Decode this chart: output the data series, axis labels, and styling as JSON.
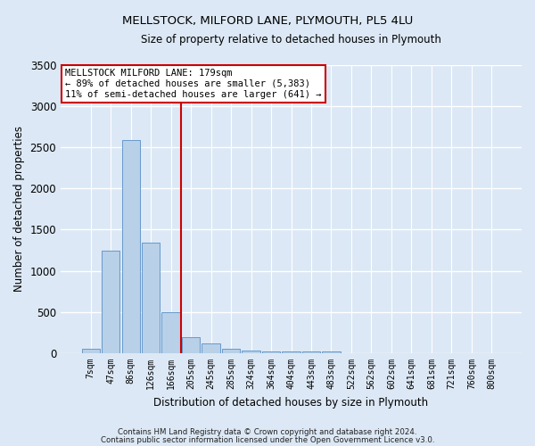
{
  "title": "MELLSTOCK, MILFORD LANE, PLYMOUTH, PL5 4LU",
  "subtitle": "Size of property relative to detached houses in Plymouth",
  "xlabel": "Distribution of detached houses by size in Plymouth",
  "ylabel": "Number of detached properties",
  "bar_color": "#b8d0e8",
  "bar_edge_color": "#6699cc",
  "categories": [
    "7sqm",
    "47sqm",
    "86sqm",
    "126sqm",
    "166sqm",
    "205sqm",
    "245sqm",
    "285sqm",
    "324sqm",
    "364sqm",
    "404sqm",
    "443sqm",
    "483sqm",
    "522sqm",
    "562sqm",
    "602sqm",
    "641sqm",
    "681sqm",
    "721sqm",
    "760sqm",
    "800sqm"
  ],
  "values": [
    50,
    1240,
    2590,
    1340,
    500,
    190,
    115,
    58,
    35,
    22,
    25,
    20,
    22,
    5,
    4,
    3,
    2,
    2,
    1,
    1,
    1
  ],
  "ylim": [
    0,
    3500
  ],
  "yticks": [
    0,
    500,
    1000,
    1500,
    2000,
    2500,
    3000,
    3500
  ],
  "vline_x": 4.5,
  "vline_color": "#cc0000",
  "annotation_text": "MELLSTOCK MILFORD LANE: 179sqm\n← 89% of detached houses are smaller (5,383)\n11% of semi-detached houses are larger (641) →",
  "annotation_box_color": "white",
  "annotation_box_edge_color": "#cc0000",
  "footer1": "Contains HM Land Registry data © Crown copyright and database right 2024.",
  "footer2": "Contains public sector information licensed under the Open Government Licence v3.0.",
  "bg_color": "#dce8f5",
  "plot_bg_color": "#dce8f5",
  "grid_color": "white"
}
